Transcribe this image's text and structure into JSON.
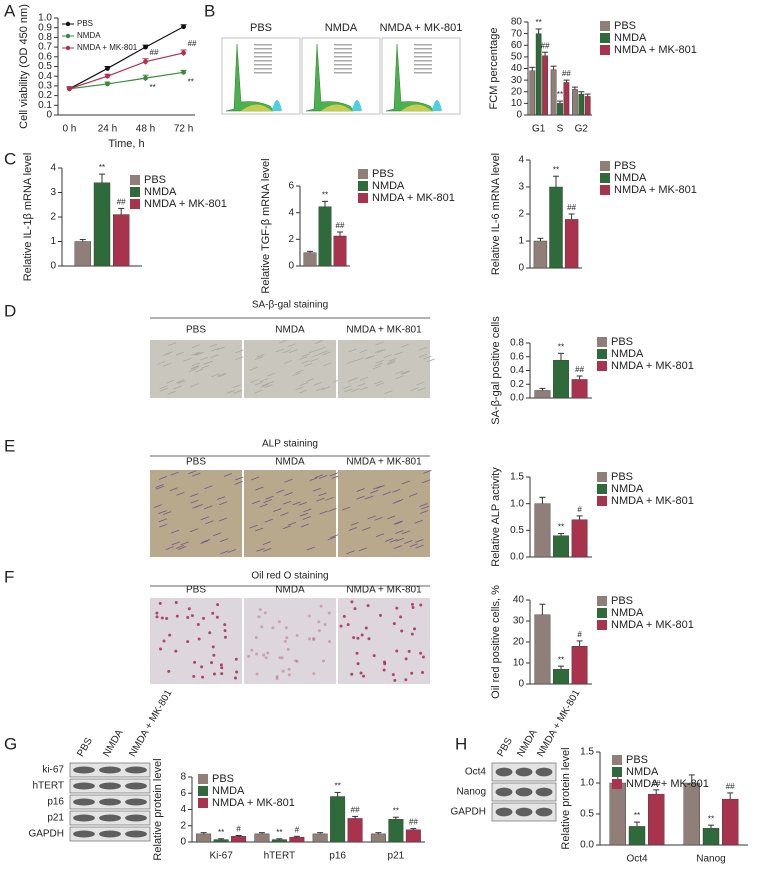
{
  "figure": {
    "panel_letters": [
      "A",
      "B",
      "C",
      "D",
      "E",
      "F",
      "G",
      "H"
    ],
    "flow_labels": [
      "PBS",
      "NMDA",
      "NMDA + MK-801"
    ],
    "staining": [
      {
        "title": "SA-β-gal staining",
        "labels": [
          "PBS",
          "NMDA",
          "NMDA + MK-801"
        ]
      },
      {
        "title": "ALP staining",
        "labels": [
          "PBS",
          "NMDA",
          "NMDA + MK-801"
        ]
      },
      {
        "title": "Oil red O staining",
        "labels": [
          "PBS",
          "NMDA",
          "NMDA + MK-801"
        ]
      }
    ],
    "blots_g": {
      "lanes": [
        "PBS",
        "NMDA",
        "NMDA + MK-801"
      ],
      "rows": [
        "ki-67",
        "hTERT",
        "p16",
        "p21",
        "GAPDH"
      ]
    },
    "blots_h": {
      "lanes": [
        "PBS",
        "NMDA",
        "NMDA + MK-801"
      ],
      "rows": [
        "Oct4",
        "Nanog",
        "GAPDH"
      ]
    }
  },
  "chart_data": [
    {
      "type": "line",
      "ylabel": "Cell viability (OD 450 nm)",
      "xlabel": "Time, h",
      "categories": [
        "0 h",
        "24 h",
        "48 h",
        "72 h"
      ],
      "ylim": [
        0,
        1
      ],
      "yticks": [
        0,
        0.1,
        0.2,
        0.3,
        0.4,
        0.5,
        0.6,
        0.7,
        0.8,
        0.9,
        {
          "value": 1,
          "label": "1.0"
        }
      ],
      "series": [
        {
          "name": "PBS",
          "color": "#111111",
          "values": [
            0.27,
            0.48,
            0.7,
            0.91
          ],
          "errors": [
            0.02,
            0.02,
            0.02,
            0.02
          ]
        },
        {
          "name": "NMDA",
          "color": "#3a8a3a",
          "values": [
            0.27,
            0.32,
            0.38,
            0.44
          ],
          "errors": [
            0.02,
            0.02,
            0.03,
            0.02
          ],
          "annotations": [
            null,
            null,
            "**",
            "**"
          ]
        },
        {
          "name": "NMDA + MK-801",
          "color": "#b03050",
          "values": [
            0.27,
            0.4,
            0.55,
            0.64
          ],
          "errors": [
            0.02,
            0.02,
            0.03,
            0.03
          ],
          "annotations": [
            null,
            null,
            "##",
            "##"
          ]
        }
      ]
    },
    {
      "type": "bar",
      "ylabel": "FCM percentage",
      "categories": [
        "G1",
        "S",
        "G2"
      ],
      "ylim": [
        0,
        80
      ],
      "yticks": [
        0,
        10,
        20,
        30,
        40,
        50,
        60,
        70,
        80
      ],
      "series": [
        {
          "name": "PBS",
          "color": "#8f7f78",
          "values": [
            38,
            39,
            22
          ],
          "errors": [
            3,
            3,
            2
          ]
        },
        {
          "name": "NMDA",
          "color": "#2f6b3a",
          "values": [
            70,
            10,
            18
          ],
          "errors": [
            4,
            2,
            2
          ],
          "annotations": [
            "**",
            "**",
            null
          ]
        },
        {
          "name": "NMDA + MK-801",
          "color": "#a8334d",
          "values": [
            51,
            28,
            16
          ],
          "errors": [
            3,
            2,
            2
          ],
          "annotations": [
            "##",
            "##",
            null
          ]
        }
      ]
    },
    {
      "type": "bar",
      "ylabel": "Relative IL-1β mRNA level",
      "categories": [
        null
      ],
      "ylim": [
        0,
        4
      ],
      "yticks": [
        0,
        1,
        2,
        3,
        4
      ],
      "series": [
        {
          "name": "PBS",
          "color": "#8f7f78",
          "values": [
            1.0
          ],
          "errors": [
            0.08
          ]
        },
        {
          "name": "NMDA",
          "color": "#2f6b3a",
          "values": [
            3.4
          ],
          "errors": [
            0.35
          ],
          "annotations": [
            "**"
          ]
        },
        {
          "name": "NMDA + MK-801",
          "color": "#a8334d",
          "values": [
            2.1
          ],
          "errors": [
            0.25
          ],
          "annotations": [
            "##"
          ]
        }
      ]
    },
    {
      "type": "bar",
      "ylabel": "Relative TGF-β mRNA level",
      "categories": [
        null
      ],
      "ylim": [
        0,
        6
      ],
      "yticks": [
        0,
        2,
        4,
        6
      ],
      "series": [
        {
          "name": "PBS",
          "color": "#8f7f78",
          "values": [
            1.0
          ],
          "errors": [
            0.1
          ]
        },
        {
          "name": "NMDA",
          "color": "#2f6b3a",
          "values": [
            4.45
          ],
          "errors": [
            0.4
          ],
          "annotations": [
            "**"
          ]
        },
        {
          "name": "NMDA + MK-801",
          "color": "#a8334d",
          "values": [
            2.25
          ],
          "errors": [
            0.3
          ],
          "annotations": [
            "##"
          ]
        }
      ]
    },
    {
      "type": "bar",
      "ylabel": "Relative IL-6 mRNA level",
      "categories": [
        null
      ],
      "ylim": [
        0,
        4
      ],
      "yticks": [
        0,
        1,
        2,
        3,
        4
      ],
      "series": [
        {
          "name": "PBS",
          "color": "#8f7f78",
          "values": [
            1.0
          ],
          "errors": [
            0.1
          ]
        },
        {
          "name": "NMDA",
          "color": "#2f6b3a",
          "values": [
            3.0
          ],
          "errors": [
            0.4
          ],
          "annotations": [
            "**"
          ]
        },
        {
          "name": "NMDA + MK-801",
          "color": "#a8334d",
          "values": [
            1.8
          ],
          "errors": [
            0.2
          ],
          "annotations": [
            "##"
          ]
        }
      ]
    },
    {
      "type": "bar",
      "ylabel": "SA-β-gal positive cells",
      "categories": [
        null
      ],
      "ylim": [
        0,
        0.8
      ],
      "yticks": [
        {
          "value": 0,
          "label": "0.0"
        },
        0.2,
        0.4,
        0.6,
        0.8
      ],
      "series": [
        {
          "name": "PBS",
          "color": "#8f7f78",
          "values": [
            0.11
          ],
          "errors": [
            0.03
          ]
        },
        {
          "name": "NMDA",
          "color": "#2f6b3a",
          "values": [
            0.55
          ],
          "errors": [
            0.1
          ],
          "annotations": [
            "**"
          ]
        },
        {
          "name": "NMDA + MK-801",
          "color": "#a8334d",
          "values": [
            0.27
          ],
          "errors": [
            0.05
          ],
          "annotations": [
            "##"
          ]
        }
      ]
    },
    {
      "type": "bar",
      "ylabel": "Relative ALP activity",
      "categories": [
        null
      ],
      "ylim": [
        0,
        1.5
      ],
      "yticks": [
        {
          "value": 0,
          "label": "0.0"
        },
        0.5,
        {
          "value": 1,
          "label": "1.0"
        },
        1.5
      ],
      "series": [
        {
          "name": "PBS",
          "color": "#8f7f78",
          "values": [
            1.0
          ],
          "errors": [
            0.12
          ]
        },
        {
          "name": "NMDA",
          "color": "#2f6b3a",
          "values": [
            0.4
          ],
          "errors": [
            0.04
          ],
          "annotations": [
            "**"
          ]
        },
        {
          "name": "NMDA + MK-801",
          "color": "#a8334d",
          "values": [
            0.7
          ],
          "errors": [
            0.07
          ],
          "annotations": [
            "#"
          ]
        }
      ]
    },
    {
      "type": "bar",
      "ylabel": "Oil red positive cells, %",
      "categories": [
        null
      ],
      "ylim": [
        0,
        40
      ],
      "yticks": [
        0,
        10,
        20,
        30,
        40
      ],
      "series": [
        {
          "name": "PBS",
          "color": "#8f7f78",
          "values": [
            33
          ],
          "errors": [
            5
          ]
        },
        {
          "name": "NMDA",
          "color": "#2f6b3a",
          "values": [
            7
          ],
          "errors": [
            1.5
          ],
          "annotations": [
            "**"
          ]
        },
        {
          "name": "NMDA + MK-801",
          "color": "#a8334d",
          "values": [
            18
          ],
          "errors": [
            2.5
          ],
          "annotations": [
            "#"
          ]
        }
      ]
    },
    {
      "type": "bar",
      "ylabel": "Relative protein level",
      "categories": [
        "Ki-67",
        "hTERT",
        "p16",
        "p21"
      ],
      "ylim": [
        0,
        8
      ],
      "yticks": [
        0,
        2,
        4,
        6,
        8
      ],
      "series": [
        {
          "name": "PBS",
          "color": "#8f7f78",
          "values": [
            1,
            1,
            1,
            1
          ],
          "errors": [
            0.15,
            0.15,
            0.15,
            0.15
          ]
        },
        {
          "name": "NMDA",
          "color": "#2f6b3a",
          "values": [
            0.3,
            0.3,
            5.6,
            2.8
          ],
          "errors": [
            0.1,
            0.1,
            0.5,
            0.25
          ],
          "annotations": [
            "**",
            "**",
            "**",
            "**"
          ]
        },
        {
          "name": "NMDA + MK-801",
          "color": "#a8334d",
          "values": [
            0.7,
            0.6,
            2.9,
            1.5
          ],
          "errors": [
            0.1,
            0.1,
            0.25,
            0.15
          ],
          "annotations": [
            "#",
            "#",
            "##",
            "##"
          ]
        }
      ]
    },
    {
      "type": "bar",
      "ylabel": "Relative protein level",
      "categories": [
        "Oct4",
        "Nanog"
      ],
      "ylim": [
        0,
        1.5
      ],
      "yticks": [
        {
          "value": 0,
          "label": "0.0"
        },
        0.5,
        {
          "value": 1,
          "label": "1.0"
        },
        1.5
      ],
      "series": [
        {
          "name": "PBS",
          "color": "#8f7f78",
          "values": [
            1,
            1
          ],
          "errors": [
            0.13,
            0.13
          ]
        },
        {
          "name": "NMDA",
          "color": "#2f6b3a",
          "values": [
            0.3,
            0.27
          ],
          "errors": [
            0.07,
            0.05
          ],
          "annotations": [
            "**",
            "**"
          ]
        },
        {
          "name": "NMDA + MK-801",
          "color": "#a8334d",
          "values": [
            0.82,
            0.74
          ],
          "errors": [
            0.07,
            0.1
          ],
          "annotations": [
            "##",
            "##"
          ]
        }
      ]
    }
  ]
}
